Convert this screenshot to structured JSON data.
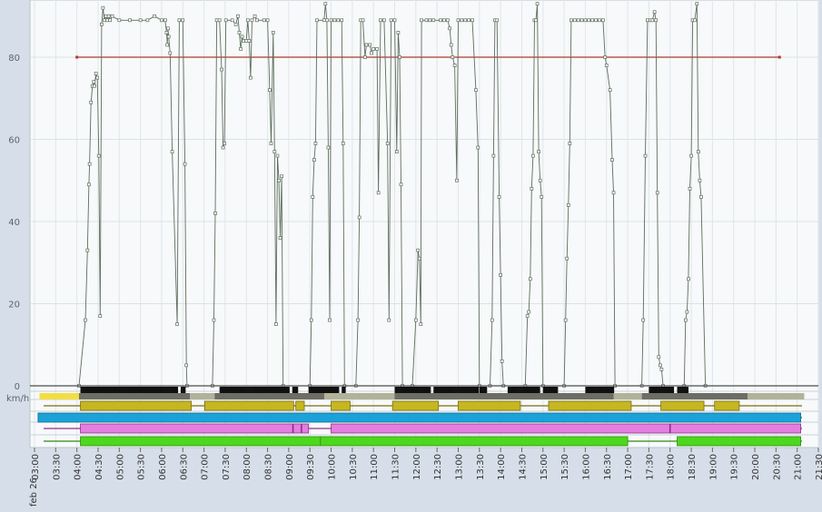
{
  "chart_data": {
    "type": "line",
    "title": "",
    "xlabel": "",
    "ylabel": "km/h",
    "ylim": [
      0,
      94
    ],
    "yticks": [
      0,
      20,
      40,
      60,
      80
    ],
    "xlim": [
      "03:00",
      "21:30"
    ],
    "date_label": "feb 26",
    "x_tick_labels": [
      "03:00",
      "03:30",
      "04:00",
      "04:30",
      "05:00",
      "05:30",
      "06:00",
      "06:30",
      "07:00",
      "07:30",
      "08:00",
      "08:30",
      "09:00",
      "09:30",
      "10:00",
      "10:30",
      "11:00",
      "11:30",
      "12:00",
      "12:30",
      "13:00",
      "13:30",
      "14:00",
      "14:30",
      "15:00",
      "15:30",
      "16:00",
      "16:30",
      "17:00",
      "17:30",
      "18:00",
      "18:30",
      "19:00",
      "19:30",
      "20:00",
      "20:30",
      "21:00",
      "21:30"
    ],
    "grid": true,
    "reference_line": {
      "y": 80,
      "x_start": "04:00",
      "x_end": "20:35",
      "color": "#b03a2e"
    },
    "series": [
      {
        "color": "#5e6e5e",
        "points": [
          [
            "04:03",
            0
          ],
          [
            "04:12",
            16
          ],
          [
            "04:15",
            33
          ],
          [
            "04:17",
            49
          ],
          [
            "04:18",
            54
          ],
          [
            "04:20",
            69
          ],
          [
            "04:22",
            73
          ],
          [
            "04:24",
            74
          ],
          [
            "04:25",
            73
          ],
          [
            "04:27",
            76
          ],
          [
            "04:29",
            75
          ],
          [
            "04:31",
            56
          ],
          [
            "04:33",
            17
          ],
          [
            "04:35",
            88
          ],
          [
            "04:37",
            92
          ],
          [
            "04:39",
            89
          ],
          [
            "04:41",
            90
          ],
          [
            "04:43",
            89
          ],
          [
            "04:45",
            90
          ],
          [
            "04:47",
            89
          ],
          [
            "04:50",
            90
          ],
          [
            "05:00",
            89
          ],
          [
            "05:15",
            89
          ],
          [
            "05:30",
            89
          ],
          [
            "05:40",
            89
          ],
          [
            "05:50",
            90
          ],
          [
            "06:00",
            89
          ],
          [
            "06:05",
            89
          ],
          [
            "06:07",
            86
          ],
          [
            "06:08",
            83
          ],
          [
            "06:09",
            87
          ],
          [
            "06:10",
            85
          ],
          [
            "06:12",
            81
          ],
          [
            "06:15",
            57
          ],
          [
            "06:22",
            15
          ],
          [
            "06:25",
            89
          ],
          [
            "06:30",
            89
          ],
          [
            "06:33",
            54
          ],
          [
            "06:35",
            5
          ],
          [
            "06:36",
            0
          ],
          [
            "07:12",
            0
          ],
          [
            "07:14",
            16
          ],
          [
            "07:16",
            42
          ],
          [
            "07:18",
            89
          ],
          [
            "07:22",
            89
          ],
          [
            "07:25",
            77
          ],
          [
            "07:27",
            58
          ],
          [
            "07:29",
            59
          ],
          [
            "07:31",
            89
          ],
          [
            "07:40",
            89
          ],
          [
            "07:45",
            88
          ],
          [
            "07:48",
            90
          ],
          [
            "07:50",
            86
          ],
          [
            "07:52",
            82
          ],
          [
            "07:54",
            85
          ],
          [
            "07:56",
            84
          ],
          [
            "08:00",
            84
          ],
          [
            "08:02",
            89
          ],
          [
            "08:04",
            84
          ],
          [
            "08:06",
            75
          ],
          [
            "08:08",
            89
          ],
          [
            "08:12",
            90
          ],
          [
            "08:15",
            89
          ],
          [
            "08:25",
            89
          ],
          [
            "08:30",
            89
          ],
          [
            "08:33",
            72
          ],
          [
            "08:35",
            59
          ],
          [
            "08:38",
            86
          ],
          [
            "08:40",
            57
          ],
          [
            "08:42",
            15
          ],
          [
            "08:44",
            56
          ],
          [
            "08:46",
            50
          ],
          [
            "08:48",
            36
          ],
          [
            "08:50",
            51
          ],
          [
            "08:52",
            0
          ],
          [
            "09:30",
            0
          ],
          [
            "09:32",
            16
          ],
          [
            "09:34",
            46
          ],
          [
            "09:36",
            55
          ],
          [
            "09:38",
            59
          ],
          [
            "09:40",
            89
          ],
          [
            "09:50",
            89
          ],
          [
            "09:52",
            93
          ],
          [
            "09:54",
            89
          ],
          [
            "09:56",
            58
          ],
          [
            "09:58",
            16
          ],
          [
            "10:00",
            89
          ],
          [
            "10:05",
            89
          ],
          [
            "10:10",
            89
          ],
          [
            "10:15",
            89
          ],
          [
            "10:17",
            59
          ],
          [
            "10:19",
            0
          ],
          [
            "10:35",
            0
          ],
          [
            "10:38",
            16
          ],
          [
            "10:40",
            41
          ],
          [
            "10:42",
            89
          ],
          [
            "10:45",
            89
          ],
          [
            "10:48",
            80
          ],
          [
            "10:50",
            83
          ],
          [
            "10:55",
            83
          ],
          [
            "10:57",
            81
          ],
          [
            "11:00",
            82
          ],
          [
            "11:05",
            82
          ],
          [
            "11:07",
            47
          ],
          [
            "11:10",
            89
          ],
          [
            "11:15",
            89
          ],
          [
            "11:20",
            59
          ],
          [
            "11:22",
            16
          ],
          [
            "11:25",
            89
          ],
          [
            "11:30",
            89
          ],
          [
            "11:33",
            57
          ],
          [
            "11:35",
            86
          ],
          [
            "11:37",
            80
          ],
          [
            "11:39",
            49
          ],
          [
            "11:41",
            0
          ],
          [
            "11:55",
            0
          ],
          [
            "12:00",
            16
          ],
          [
            "12:03",
            33
          ],
          [
            "12:05",
            31
          ],
          [
            "12:07",
            15
          ],
          [
            "12:08",
            89
          ],
          [
            "12:15",
            89
          ],
          [
            "12:20",
            89
          ],
          [
            "12:25",
            89
          ],
          [
            "12:35",
            89
          ],
          [
            "12:40",
            89
          ],
          [
            "12:45",
            89
          ],
          [
            "12:48",
            87
          ],
          [
            "12:50",
            83
          ],
          [
            "12:52",
            80
          ],
          [
            "12:55",
            78
          ],
          [
            "12:58",
            50
          ],
          [
            "13:00",
            89
          ],
          [
            "13:05",
            89
          ],
          [
            "13:10",
            89
          ],
          [
            "13:15",
            89
          ],
          [
            "13:20",
            89
          ],
          [
            "13:25",
            72
          ],
          [
            "13:28",
            58
          ],
          [
            "13:30",
            0
          ],
          [
            "13:45",
            0
          ],
          [
            "13:48",
            16
          ],
          [
            "13:50",
            56
          ],
          [
            "13:52",
            89
          ],
          [
            "13:55",
            89
          ],
          [
            "13:58",
            46
          ],
          [
            "14:00",
            27
          ],
          [
            "14:02",
            6
          ],
          [
            "14:04",
            0
          ],
          [
            "14:35",
            0
          ],
          [
            "14:38",
            17
          ],
          [
            "14:40",
            18
          ],
          [
            "14:42",
            26
          ],
          [
            "14:44",
            48
          ],
          [
            "14:46",
            56
          ],
          [
            "14:48",
            89
          ],
          [
            "14:50",
            89
          ],
          [
            "14:52",
            93
          ],
          [
            "14:54",
            57
          ],
          [
            "14:56",
            50
          ],
          [
            "14:58",
            46
          ],
          [
            "15:00",
            0
          ],
          [
            "15:30",
            0
          ],
          [
            "15:32",
            16
          ],
          [
            "15:34",
            31
          ],
          [
            "15:36",
            44
          ],
          [
            "15:38",
            59
          ],
          [
            "15:40",
            89
          ],
          [
            "15:45",
            89
          ],
          [
            "15:50",
            89
          ],
          [
            "15:55",
            89
          ],
          [
            "16:00",
            89
          ],
          [
            "16:05",
            89
          ],
          [
            "16:10",
            89
          ],
          [
            "16:15",
            89
          ],
          [
            "16:20",
            89
          ],
          [
            "16:25",
            89
          ],
          [
            "16:28",
            80
          ],
          [
            "16:30",
            78
          ],
          [
            "16:35",
            72
          ],
          [
            "16:38",
            55
          ],
          [
            "16:40",
            47
          ],
          [
            "16:42",
            0
          ],
          [
            "17:20",
            0
          ],
          [
            "17:22",
            16
          ],
          [
            "17:25",
            56
          ],
          [
            "17:28",
            89
          ],
          [
            "17:32",
            89
          ],
          [
            "17:35",
            89
          ],
          [
            "17:38",
            91
          ],
          [
            "17:40",
            89
          ],
          [
            "17:42",
            47
          ],
          [
            "17:44",
            7
          ],
          [
            "17:46",
            5
          ],
          [
            "17:48",
            4
          ],
          [
            "17:50",
            0
          ],
          [
            "18:20",
            0
          ],
          [
            "18:22",
            16
          ],
          [
            "18:24",
            18
          ],
          [
            "18:26",
            26
          ],
          [
            "18:28",
            48
          ],
          [
            "18:30",
            56
          ],
          [
            "18:32",
            89
          ],
          [
            "18:35",
            89
          ],
          [
            "18:38",
            93
          ],
          [
            "18:40",
            57
          ],
          [
            "18:42",
            50
          ],
          [
            "18:44",
            46
          ],
          [
            "18:50",
            0
          ]
        ]
      }
    ],
    "timeline_rows": [
      {
        "kind": "ticks",
        "color": "#111111",
        "segments": [
          [
            "04:05",
            "06:22"
          ],
          [
            "06:27",
            "06:33"
          ],
          [
            "07:22",
            "09:00"
          ],
          [
            "09:05",
            "09:12"
          ],
          [
            "09:28",
            "10:10"
          ],
          [
            "10:15",
            "10:20"
          ],
          [
            "11:30",
            "12:20"
          ],
          [
            "12:25",
            "13:28"
          ],
          [
            "13:30",
            "13:40"
          ],
          [
            "14:10",
            "14:55"
          ],
          [
            "15:00",
            "15:20"
          ],
          [
            "16:00",
            "16:40"
          ],
          [
            "17:30",
            "18:05"
          ],
          [
            "18:10",
            "18:25"
          ]
        ]
      },
      {
        "kind": "status-strip",
        "segments": [
          {
            "from": "03:07",
            "to": "04:03",
            "color": "#f2de44"
          },
          {
            "from": "04:03",
            "to": "06:40",
            "color": "#6d6d64"
          },
          {
            "from": "06:40",
            "to": "07:15",
            "color": "#b2b29a"
          },
          {
            "from": "07:15",
            "to": "09:50",
            "color": "#6d6d64"
          },
          {
            "from": "09:50",
            "to": "11:30",
            "color": "#b2b29a"
          },
          {
            "from": "11:30",
            "to": "16:40",
            "color": "#6d6d64"
          },
          {
            "from": "16:40",
            "to": "17:20",
            "color": "#b2b29a"
          },
          {
            "from": "17:20",
            "to": "19:50",
            "color": "#6d6d64"
          },
          {
            "from": "19:50",
            "to": "21:10",
            "color": "#b2b29a"
          }
        ]
      },
      {
        "kind": "bars",
        "color": "#c6b621",
        "line_color": "#7a7012",
        "segments": [
          [
            "04:05",
            "06:42"
          ],
          [
            "07:01",
            "09:07"
          ],
          [
            "09:10",
            "09:22"
          ],
          [
            "10:00",
            "10:27"
          ],
          [
            "11:27",
            "12:32"
          ],
          [
            "13:00",
            "14:28"
          ],
          [
            "15:08",
            "17:05"
          ],
          [
            "17:47",
            "18:48"
          ],
          [
            "19:03",
            "19:38"
          ]
        ]
      },
      {
        "kind": "bars",
        "color": "#1ca2d8",
        "line_color": "#0f6c93",
        "segments": [
          [
            "03:05",
            "21:05"
          ]
        ]
      },
      {
        "kind": "bars",
        "color": "#e57ee0",
        "line_color": "#8e2f8a",
        "segments": [
          [
            "04:05",
            "09:28"
          ],
          [
            "10:00",
            "21:05"
          ]
        ],
        "markers": [
          "09:06",
          "09:18",
          "18:00"
        ]
      },
      {
        "kind": "bars",
        "color": "#4dd81d",
        "line_color": "#2f8a12",
        "segments": [
          [
            "04:05",
            "09:45"
          ],
          [
            "09:45",
            "17:00"
          ],
          [
            "18:10",
            "21:05"
          ]
        ]
      }
    ],
    "legend": "none"
  }
}
